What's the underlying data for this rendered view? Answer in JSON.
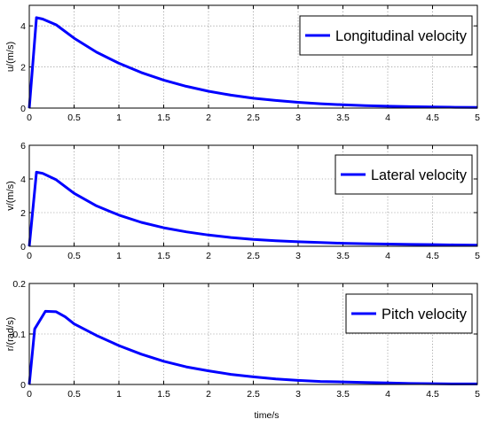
{
  "chart_data": [
    {
      "type": "line",
      "ylabel": "u/(m/s)",
      "xlabel": "",
      "xlim": [
        0,
        5
      ],
      "ylim": [
        0,
        5
      ],
      "xticks": [
        "0",
        "0.5",
        "1",
        "1.5",
        "2",
        "2.5",
        "3",
        "3.5",
        "4",
        "4.5",
        "5"
      ],
      "yticks": [
        "0",
        "2",
        "4"
      ],
      "ytick_values": [
        0,
        2,
        4
      ],
      "grid": true,
      "legend_position": "top-right",
      "series": [
        {
          "name": "Longitudinal velocity",
          "color": "#0000ff",
          "x": [
            0,
            0.08,
            0.15,
            0.3,
            0.5,
            0.75,
            1,
            1.25,
            1.5,
            1.75,
            2,
            2.25,
            2.5,
            2.75,
            3,
            3.25,
            3.5,
            3.75,
            4,
            4.25,
            4.5,
            4.75,
            5
          ],
          "y": [
            0,
            4.4,
            4.33,
            4.05,
            3.4,
            2.72,
            2.18,
            1.73,
            1.36,
            1.06,
            0.82,
            0.63,
            0.48,
            0.37,
            0.28,
            0.21,
            0.16,
            0.12,
            0.09,
            0.07,
            0.05,
            0.04,
            0.03
          ]
        }
      ]
    },
    {
      "type": "line",
      "ylabel": "v/(m/s)",
      "xlabel": "",
      "xlim": [
        0,
        5
      ],
      "ylim": [
        0,
        6
      ],
      "xticks": [
        "0",
        "0.5",
        "1",
        "1.5",
        "2",
        "2.5",
        "3",
        "3.5",
        "4",
        "4.5",
        "5"
      ],
      "yticks": [
        "0",
        "2",
        "4",
        "6"
      ],
      "ytick_values": [
        0,
        2,
        4,
        6
      ],
      "grid": true,
      "legend_position": "top-right",
      "series": [
        {
          "name": "Lateral velocity",
          "color": "#0000ff",
          "x": [
            0,
            0.08,
            0.15,
            0.3,
            0.5,
            0.75,
            1,
            1.25,
            1.5,
            1.75,
            2,
            2.25,
            2.5,
            2.75,
            3,
            3.25,
            3.5,
            3.75,
            4,
            4.25,
            4.5,
            4.75,
            5
          ],
          "y": [
            0,
            4.4,
            4.33,
            3.95,
            3.15,
            2.4,
            1.85,
            1.42,
            1.1,
            0.86,
            0.67,
            0.52,
            0.41,
            0.33,
            0.27,
            0.22,
            0.18,
            0.15,
            0.13,
            0.11,
            0.1,
            0.08,
            0.07
          ]
        }
      ]
    },
    {
      "type": "line",
      "ylabel": "r/(rad/s)",
      "xlabel": "time/s",
      "xlim": [
        0,
        5
      ],
      "ylim": [
        0,
        0.2
      ],
      "xticks": [
        "0",
        "0.5",
        "1",
        "1.5",
        "2",
        "2.5",
        "3",
        "3.5",
        "4",
        "4.5",
        "5"
      ],
      "yticks": [
        "0",
        "0.1",
        "0.2"
      ],
      "ytick_values": [
        0,
        0.1,
        0.2
      ],
      "grid": true,
      "legend_position": "top-right",
      "series": [
        {
          "name": "Pitch velocity",
          "color": "#0000ff",
          "x": [
            0,
            0.06,
            0.18,
            0.3,
            0.4,
            0.5,
            0.75,
            1,
            1.25,
            1.5,
            1.75,
            2,
            2.25,
            2.5,
            2.75,
            3,
            3.25,
            3.5,
            3.75,
            4,
            4.25,
            4.5,
            4.75,
            5
          ],
          "y": [
            0,
            0.11,
            0.145,
            0.144,
            0.134,
            0.12,
            0.097,
            0.077,
            0.06,
            0.046,
            0.035,
            0.027,
            0.02,
            0.015,
            0.011,
            0.008,
            0.006,
            0.005,
            0.004,
            0.003,
            0.002,
            0.0015,
            0.001,
            0.001
          ]
        }
      ]
    }
  ]
}
